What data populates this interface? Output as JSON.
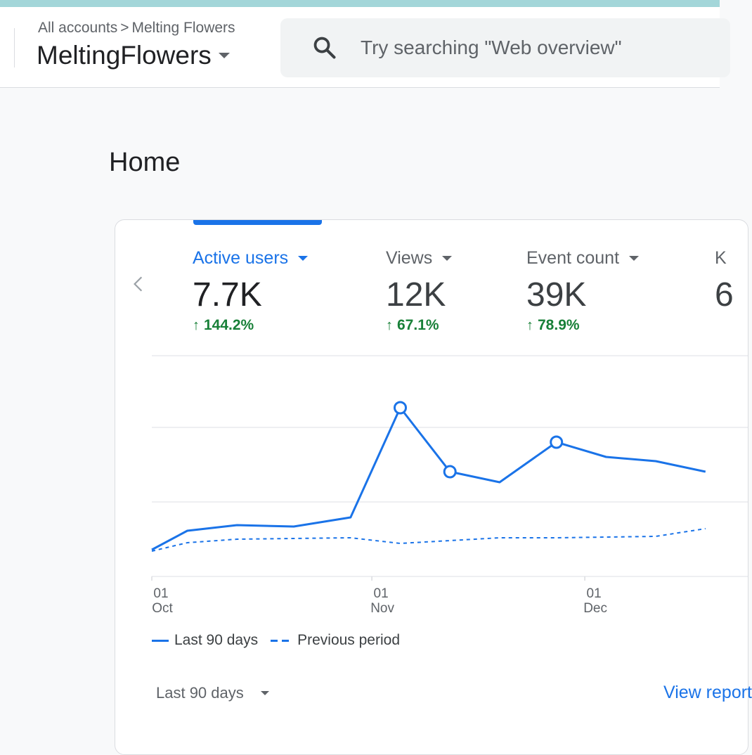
{
  "header": {
    "breadcrumb": {
      "root": "All accounts",
      "separator": ">",
      "current": "Melting Flowers"
    },
    "property_name": "MeltingFlowers",
    "search": {
      "placeholder": "Try searching \"Web overview\"",
      "icon": "search-icon"
    }
  },
  "page": {
    "title": "Home"
  },
  "colors": {
    "accent": "#1a73e8",
    "positive": "#188038",
    "topstrip": "#a3d6d9"
  },
  "metrics": [
    {
      "label": "Active users",
      "value": "7.7K",
      "change": "144.2%",
      "active": true
    },
    {
      "label": "Views",
      "value": "12K",
      "change": "67.1%",
      "active": false
    },
    {
      "label": "Event count",
      "value": "39K",
      "change": "78.9%",
      "active": false
    },
    {
      "label": "K",
      "value": "6",
      "change": "",
      "active": false
    }
  ],
  "chart_data": {
    "type": "line",
    "x_ticks": [
      {
        "day": "01",
        "month": "Oct",
        "x": 0
      },
      {
        "day": "01",
        "month": "Nov",
        "x": 31
      },
      {
        "day": "01",
        "month": "Dec",
        "x": 61
      }
    ],
    "grid": true,
    "legend_position": "bottom-left",
    "series": [
      {
        "name": "Last 90 days",
        "style": "solid",
        "points": [
          [
            0,
            38
          ],
          [
            5,
            65
          ],
          [
            12,
            73
          ],
          [
            20,
            71
          ],
          [
            28,
            84
          ],
          [
            35,
            240
          ],
          [
            42,
            149
          ],
          [
            49,
            134
          ],
          [
            57,
            191
          ],
          [
            64,
            170
          ],
          [
            71,
            164
          ],
          [
            78,
            149
          ]
        ],
        "markers": [
          [
            35,
            240
          ],
          [
            42,
            149
          ],
          [
            57,
            191
          ]
        ]
      },
      {
        "name": "Previous period",
        "style": "dashed",
        "points": [
          [
            0,
            36
          ],
          [
            5,
            48
          ],
          [
            12,
            53
          ],
          [
            28,
            55
          ],
          [
            35,
            47
          ],
          [
            49,
            55
          ],
          [
            57,
            55
          ],
          [
            71,
            57
          ],
          [
            78,
            68
          ]
        ]
      }
    ]
  },
  "footer": {
    "date_range": "Last 90 days",
    "view_report": "View report"
  }
}
